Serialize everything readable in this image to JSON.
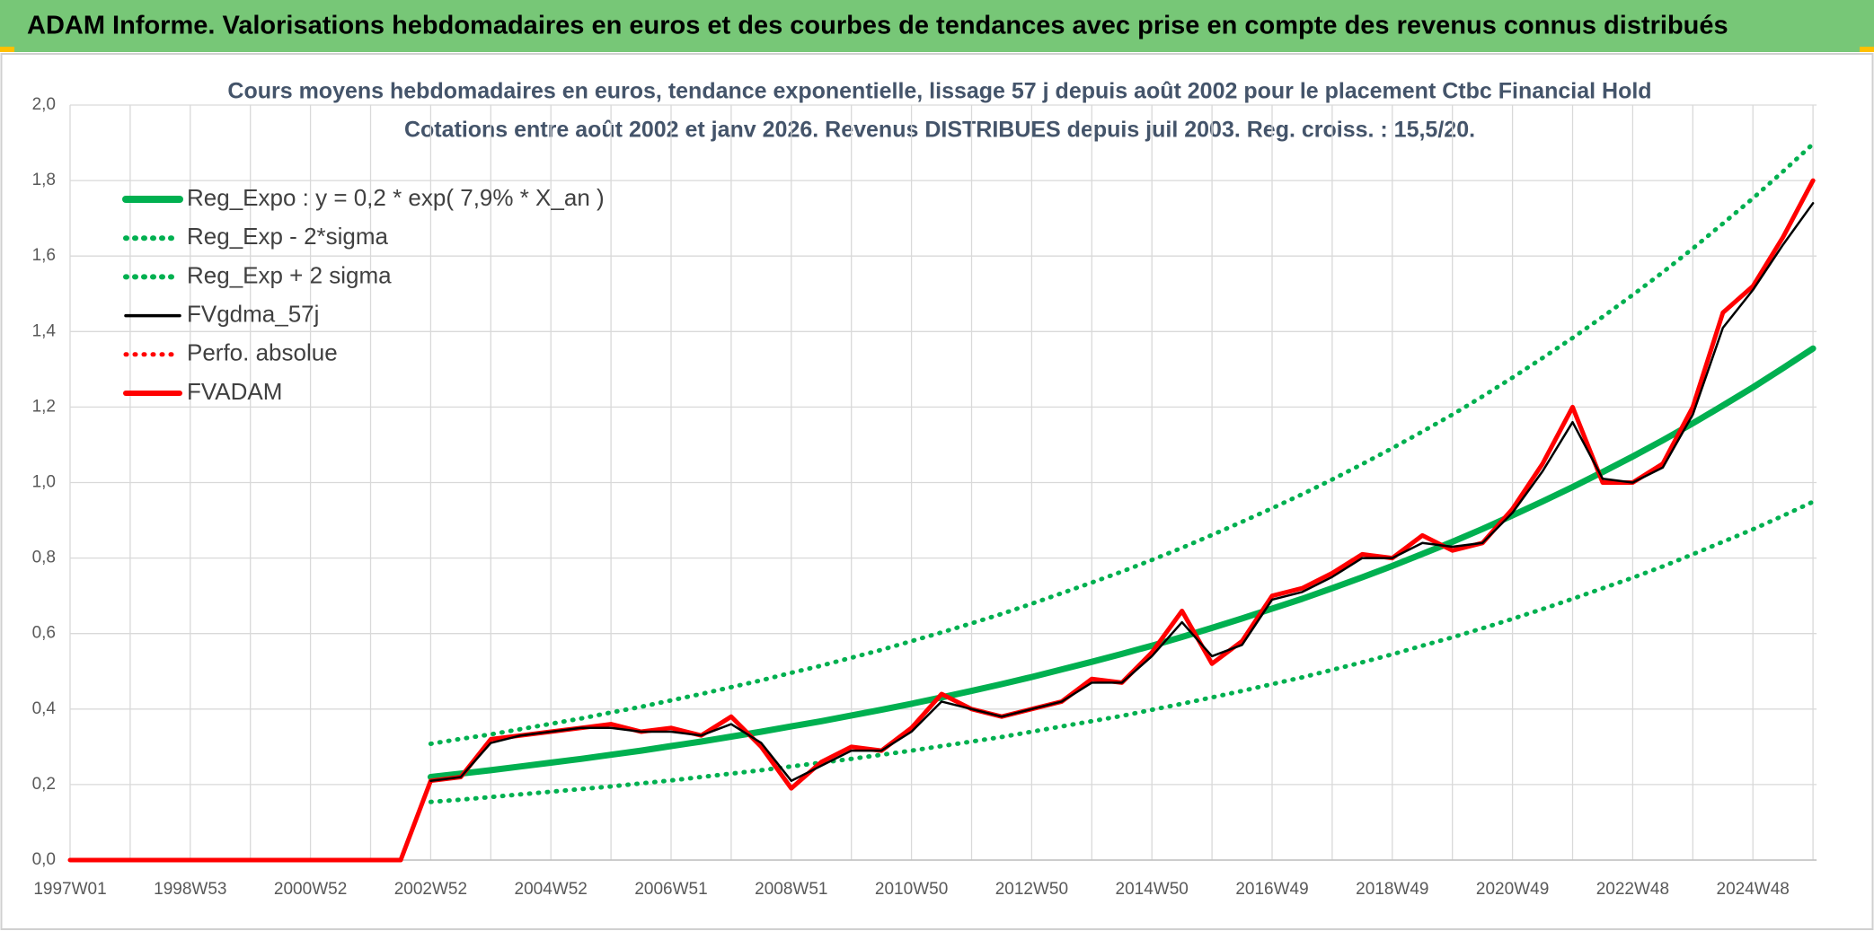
{
  "header": {
    "title": "ADAM Informe. Valorisations hebdomadaires en euros et des courbes de tendances avec prise en compte des revenus connus distribués"
  },
  "chart_data": {
    "type": "line",
    "title": "Cours moyens hebdomadaires en euros, tendance exponentielle, lissage 57 j depuis août 2002 pour le placement Ctbc Financial Hold",
    "subtitle": "Cotations entre août 2002 et janv 2026. Revenus DISTRIBUES depuis juil 2003. Reg. croiss. : 15,5/20.",
    "categories": [
      "1997W01",
      null,
      null,
      null,
      "1998W53",
      null,
      null,
      null,
      "2000W52",
      null,
      null,
      null,
      "2002W52",
      null,
      null,
      null,
      "2004W52",
      null,
      null,
      null,
      "2006W51",
      null,
      null,
      null,
      "2008W51",
      null,
      null,
      null,
      "2010W50",
      null,
      null,
      null,
      "2012W50",
      null,
      null,
      null,
      "2014W50",
      null,
      null,
      null,
      "2016W49",
      null,
      null,
      null,
      "2018W49",
      null,
      null,
      null,
      "2020W49",
      null,
      null,
      null,
      "2022W48",
      null,
      null,
      null,
      "2024W48",
      null,
      null
    ],
    "ylim": [
      0,
      2.0
    ],
    "yticks": [
      {
        "value": 0,
        "label": "0,0"
      },
      {
        "value": 0.2,
        "label": "0,2"
      },
      {
        "value": 0.4,
        "label": "0,4"
      },
      {
        "value": 0.6,
        "label": "0,6"
      },
      {
        "value": 0.8,
        "label": "0,8"
      },
      {
        "value": 1.0,
        "label": "1,0"
      },
      {
        "value": 1.2,
        "label": "1,2"
      },
      {
        "value": 1.4,
        "label": "1,4"
      },
      {
        "value": 1.6,
        "label": "1,6"
      },
      {
        "value": 1.8,
        "label": "1,8"
      },
      {
        "value": 2.0,
        "label": "2,0"
      }
    ],
    "grid": true,
    "legend": "top-left",
    "series": [
      {
        "name": "Reg_Expo : y = 0,2 * exp( 7,9% *  X_an )",
        "color": "#00b050",
        "style": "solid",
        "values": [
          null,
          null,
          null,
          null,
          null,
          null,
          null,
          null,
          null,
          null,
          null,
          null,
          0.22,
          0.229,
          0.238,
          0.248,
          0.258,
          0.268,
          0.279,
          0.29,
          0.302,
          0.314,
          0.327,
          0.34,
          0.354,
          0.368,
          0.383,
          0.398,
          0.414,
          0.431,
          0.448,
          0.466,
          0.485,
          0.505,
          0.525,
          0.546,
          0.568,
          0.591,
          0.615,
          0.64,
          0.666,
          0.692,
          0.72,
          0.749,
          0.779,
          0.811,
          0.843,
          0.877,
          0.913,
          0.95,
          0.988,
          1.028,
          1.069,
          1.112,
          1.157,
          1.204,
          1.252,
          1.303,
          1.355
        ]
      },
      {
        "name": "Reg_Exp - 2*sigma",
        "color": "#00b050",
        "style": "dotted",
        "values": [
          null,
          null,
          null,
          null,
          null,
          null,
          null,
          null,
          null,
          null,
          null,
          null,
          0.154,
          0.16,
          0.167,
          0.174,
          0.181,
          0.188,
          0.195,
          0.203,
          0.211,
          0.22,
          0.229,
          0.238,
          0.248,
          0.258,
          0.268,
          0.279,
          0.29,
          0.302,
          0.314,
          0.326,
          0.34,
          0.354,
          0.368,
          0.382,
          0.398,
          0.414,
          0.431,
          0.448,
          0.466,
          0.484,
          0.504,
          0.524,
          0.545,
          0.568,
          0.59,
          0.614,
          0.639,
          0.665,
          0.692,
          0.72,
          0.748,
          0.778,
          0.81,
          0.843,
          0.876,
          0.912,
          0.949
        ]
      },
      {
        "name": "Reg_Exp + 2 sigma",
        "color": "#00b050",
        "style": "dotted",
        "values": [
          null,
          null,
          null,
          null,
          null,
          null,
          null,
          null,
          null,
          null,
          null,
          null,
          0.308,
          0.321,
          0.333,
          0.347,
          0.361,
          0.375,
          0.391,
          0.406,
          0.423,
          0.44,
          0.458,
          0.476,
          0.496,
          0.515,
          0.536,
          0.557,
          0.58,
          0.603,
          0.627,
          0.652,
          0.679,
          0.707,
          0.735,
          0.764,
          0.795,
          0.827,
          0.861,
          0.896,
          0.932,
          0.969,
          1.008,
          1.049,
          1.091,
          1.135,
          1.18,
          1.228,
          1.278,
          1.33,
          1.383,
          1.439,
          1.497,
          1.557,
          1.62,
          1.686,
          1.753,
          1.824,
          1.897
        ]
      },
      {
        "name": "FVgdma_57j",
        "color": "#000000",
        "style": "solid",
        "values": [
          null,
          null,
          null,
          null,
          null,
          null,
          null,
          null,
          null,
          null,
          null,
          null,
          0.21,
          0.22,
          0.31,
          0.33,
          0.34,
          0.35,
          0.35,
          0.34,
          0.34,
          0.33,
          0.36,
          0.31,
          0.21,
          0.25,
          0.29,
          0.29,
          0.34,
          0.42,
          0.4,
          0.38,
          0.4,
          0.42,
          0.47,
          0.47,
          0.54,
          0.63,
          0.54,
          0.57,
          0.69,
          0.71,
          0.75,
          0.8,
          0.8,
          0.84,
          0.83,
          0.84,
          0.92,
          1.03,
          1.16,
          1.01,
          1.0,
          1.04,
          1.18,
          1.41,
          1.51,
          1.63,
          1.74
        ]
      },
      {
        "name": "Perfo. absolue",
        "color": "#ff0000",
        "style": "dotted",
        "values": [
          0,
          0,
          0,
          0,
          0,
          0,
          0,
          0,
          0,
          0,
          0,
          0,
          0.21,
          0.22,
          0.32,
          0.33,
          0.34,
          0.35,
          0.36,
          0.34,
          0.35,
          0.33,
          0.38,
          0.3,
          0.19,
          0.26,
          0.3,
          0.29,
          0.35,
          0.44,
          0.4,
          0.38,
          0.4,
          0.42,
          0.48,
          0.47,
          0.55,
          0.66,
          0.52,
          0.58,
          0.7,
          0.72,
          0.76,
          0.81,
          0.8,
          0.86,
          0.82,
          0.84,
          0.93,
          1.05,
          1.2,
          1.0,
          1.0,
          1.05,
          1.2,
          1.45,
          1.52,
          1.65,
          1.8
        ]
      },
      {
        "name": "FVADAM",
        "color": "#ff0000",
        "style": "solid",
        "values": [
          0,
          0,
          0,
          0,
          0,
          0,
          0,
          0,
          0,
          0,
          0,
          0,
          0.21,
          0.22,
          0.32,
          0.33,
          0.34,
          0.35,
          0.36,
          0.34,
          0.35,
          0.33,
          0.38,
          0.3,
          0.19,
          0.26,
          0.3,
          0.29,
          0.35,
          0.44,
          0.4,
          0.38,
          0.4,
          0.42,
          0.48,
          0.47,
          0.55,
          0.66,
          0.52,
          0.58,
          0.7,
          0.72,
          0.76,
          0.81,
          0.8,
          0.86,
          0.82,
          0.84,
          0.93,
          1.05,
          1.2,
          1.0,
          1.0,
          1.05,
          1.2,
          1.45,
          1.52,
          1.65,
          1.8
        ]
      }
    ]
  }
}
